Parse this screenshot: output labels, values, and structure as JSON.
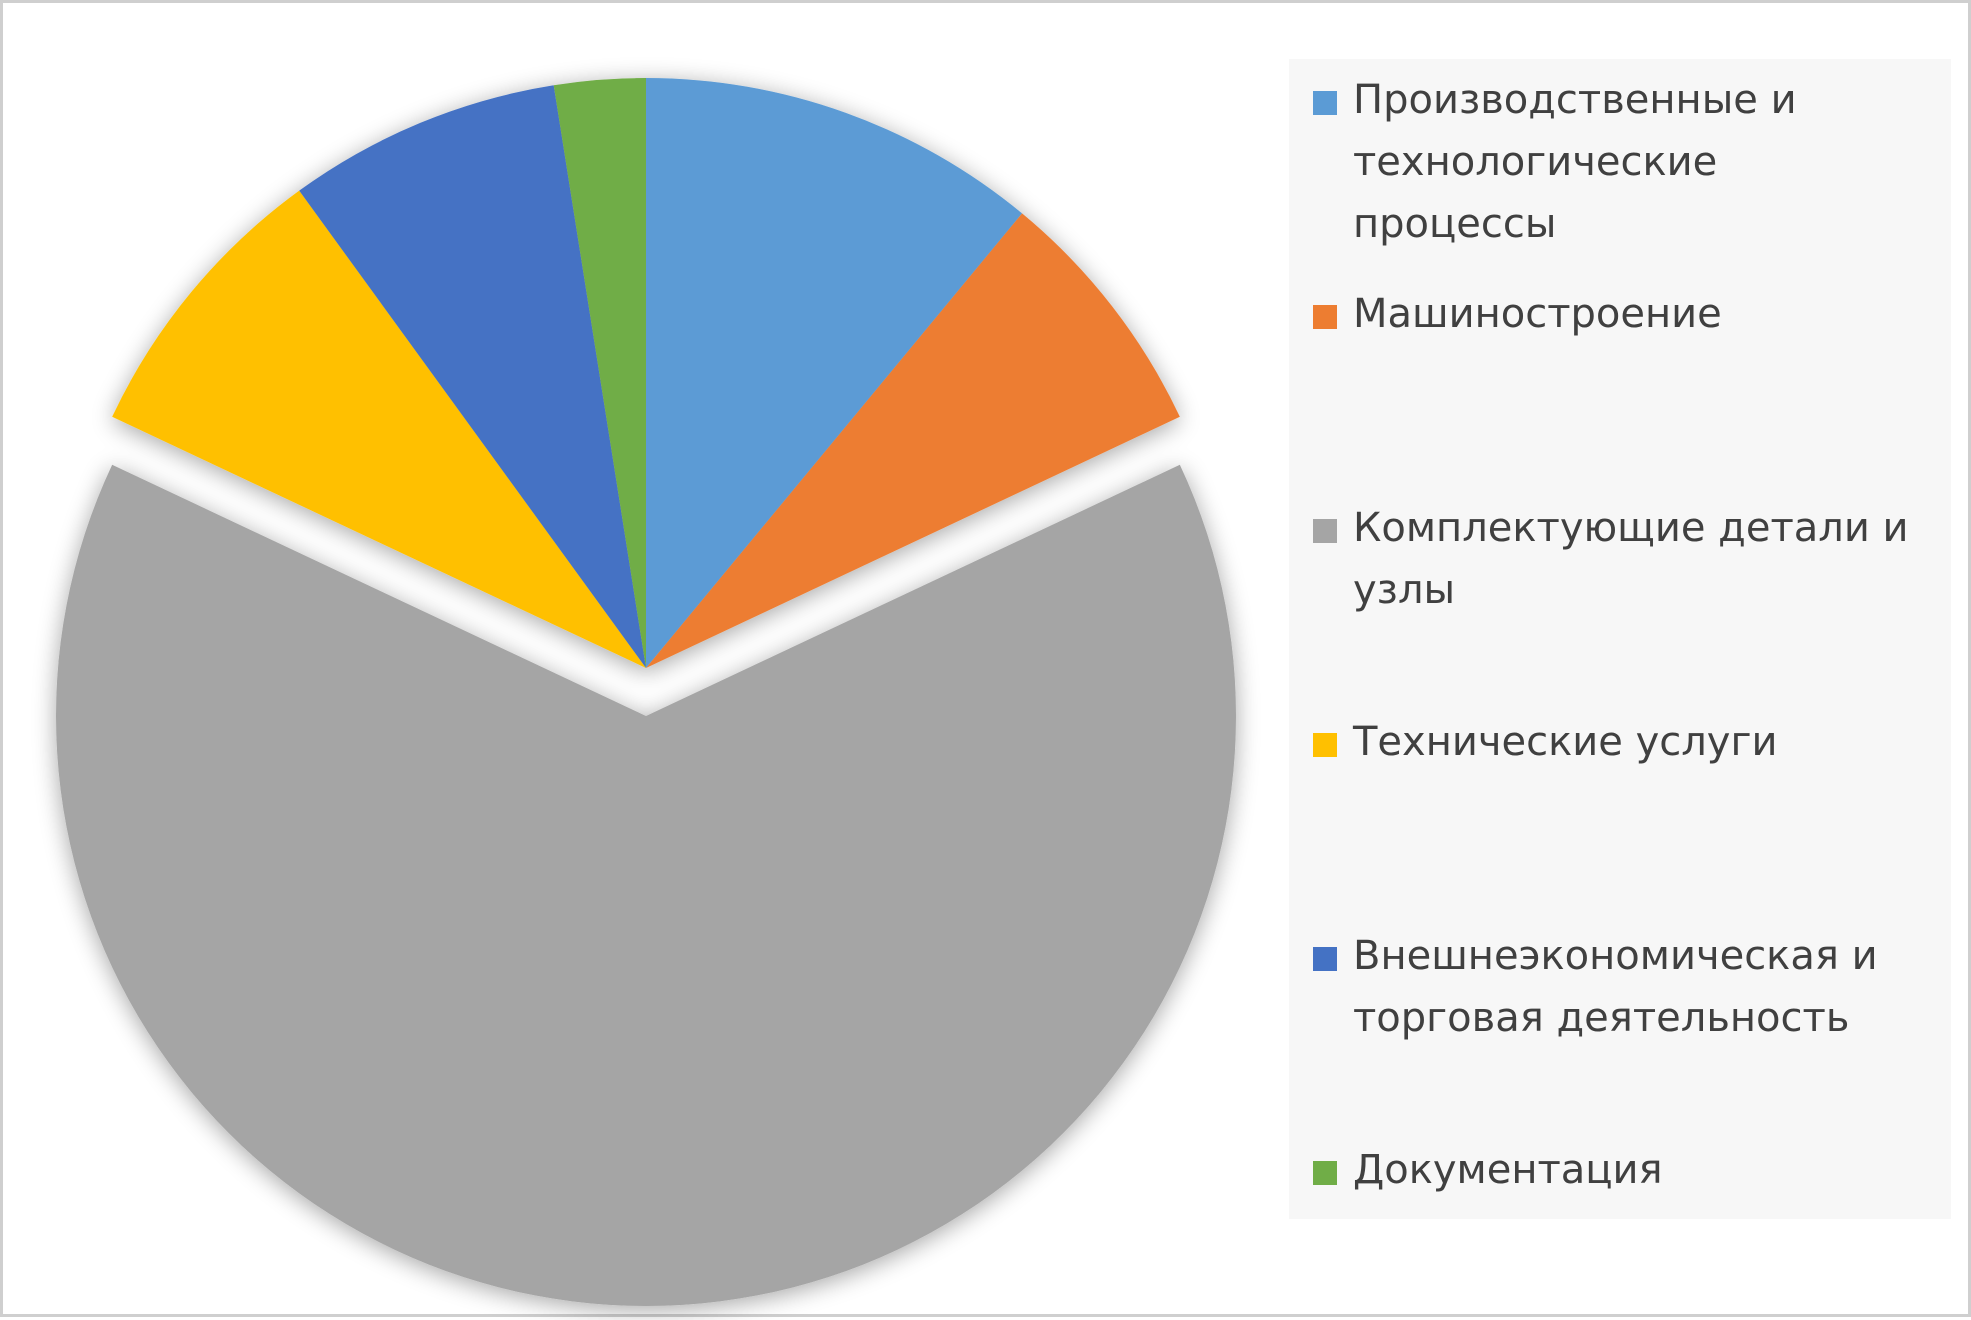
{
  "chart_data": {
    "type": "pie",
    "title": "",
    "legend_position": "right",
    "slices": [
      {
        "label": "Производственные и технологические процессы",
        "value": 11,
        "color": "#5b9bd5"
      },
      {
        "label": "Машиностроение",
        "value": 7,
        "color": "#ed7d31"
      },
      {
        "label": "Комплектующие детали и узлы",
        "value": 64,
        "color": "#a5a5a5",
        "exploded": true
      },
      {
        "label": "Технические услуги",
        "value": 8,
        "color": "#ffc000"
      },
      {
        "label": "Внешнеэкономическая и торговая деятельность",
        "value": 7.5,
        "color": "#4472c4"
      },
      {
        "label": "Документация",
        "value": 2.5,
        "color": "#70ad47"
      }
    ]
  }
}
